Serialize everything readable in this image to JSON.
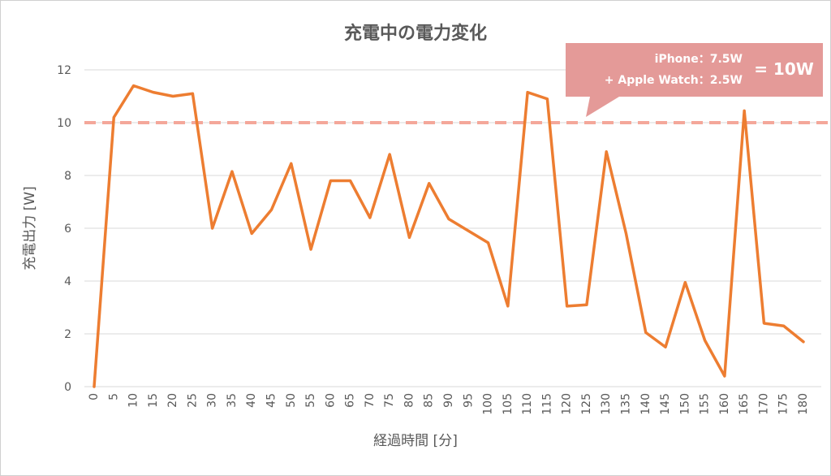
{
  "chart_data": {
    "type": "line",
    "title": "充電中の電力変化",
    "xlabel": "経過時間 [分]",
    "ylabel": "充電出力 [W]",
    "ylim": [
      0,
      12
    ],
    "yticks": [
      0,
      2,
      4,
      6,
      8,
      10,
      12
    ],
    "x": [
      0,
      5,
      10,
      15,
      20,
      25,
      30,
      35,
      40,
      45,
      50,
      55,
      60,
      65,
      70,
      75,
      80,
      85,
      90,
      95,
      100,
      105,
      110,
      115,
      120,
      125,
      130,
      135,
      140,
      145,
      150,
      155,
      160,
      165,
      170,
      175,
      180
    ],
    "series": [
      {
        "color": "#ED7D31",
        "values": [
          0,
          10.2,
          11.4,
          11.15,
          11.0,
          11.1,
          6.0,
          8.15,
          5.8,
          6.7,
          8.45,
          5.2,
          7.8,
          7.8,
          6.4,
          8.8,
          5.65,
          7.7,
          6.35,
          5.9,
          5.45,
          3.05,
          11.15,
          10.9,
          3.05,
          3.1,
          8.9,
          5.8,
          2.05,
          1.5,
          3.95,
          1.75,
          0.4,
          10.45,
          2.4,
          2.3,
          1.7
        ]
      }
    ],
    "reference_line": {
      "value": 10,
      "color": "#F4A79A",
      "style": "dashed"
    },
    "annotation": {
      "line1": "iPhone：7.5W",
      "line2": "+ Apple Watch：2.5W",
      "result": "= 10W",
      "fill": "#E49A98"
    },
    "grid": "horizontal"
  }
}
